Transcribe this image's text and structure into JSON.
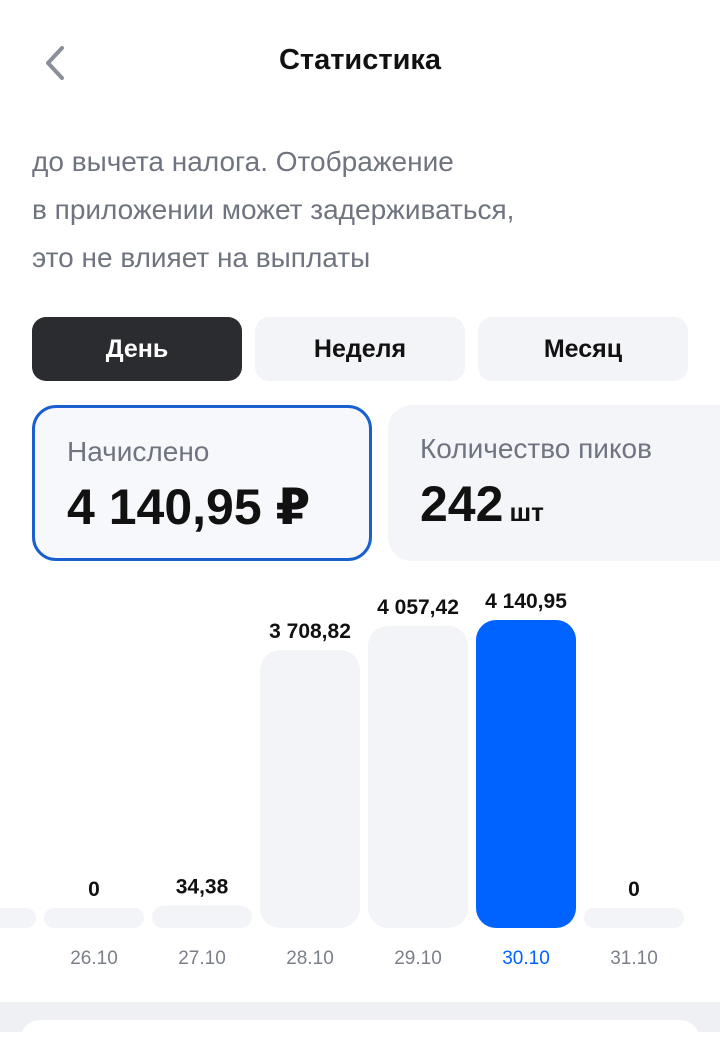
{
  "header": {
    "title": "Статистика"
  },
  "intro": {
    "lines": [
      "до вычета налога. Отображение",
      "в приложении может задерживаться,",
      "это не влияет на выплаты"
    ]
  },
  "tabs": {
    "items": [
      "День",
      "Неделя",
      "Месяц"
    ],
    "active": 0
  },
  "cards": [
    {
      "label": "Начислено",
      "value": "4 140,95 ₽"
    },
    {
      "label": "Количество пиков",
      "value": "242",
      "unit": "шт"
    }
  ],
  "chart_data": {
    "type": "bar",
    "categories": [
      "26.10",
      "27.10",
      "28.10",
      "29.10",
      "30.10",
      "31.10"
    ],
    "values": [
      0,
      34.38,
      3708.82,
      4057.42,
      4140.95,
      0
    ],
    "value_labels": [
      "0",
      "34,38",
      "3 708,82",
      "4 057,42",
      "4 140,95",
      "0"
    ],
    "color": "#f3f4f8",
    "highlight_color": "#0062ff",
    "highlight_index": 4
  }
}
